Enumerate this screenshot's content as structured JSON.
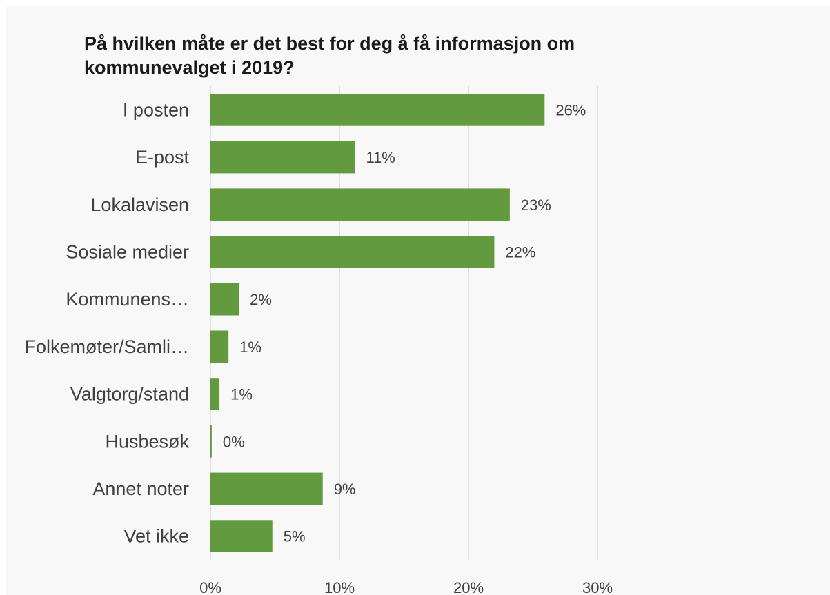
{
  "chart_data": {
    "type": "bar",
    "orientation": "horizontal",
    "title": "På hvilken måte er det best for deg å få informasjon om kommunevalget i 2019?",
    "categories": [
      "I posten",
      "E-post",
      "Lokalavisen",
      "Sosiale medier",
      "Kommunens…",
      "Folkemøter/Samli…",
      "Valgtorg/stand",
      "Husbesøk",
      "Annet noter",
      "Vet ikke"
    ],
    "values": [
      0.26,
      0.11,
      0.23,
      0.22,
      0.02,
      0.01,
      0.01,
      0.0,
      0.09,
      0.05
    ],
    "value_labels": [
      "26%",
      "11%",
      "23%",
      "22%",
      "2%",
      "1%",
      "1%",
      "0%",
      "9%",
      "5%"
    ],
    "bar_values_estimated": [
      0.259,
      0.112,
      0.232,
      0.22,
      0.022,
      0.014,
      0.007,
      0.001,
      0.087,
      0.048
    ],
    "xlim": [
      0,
      0.3
    ],
    "xticks": [
      0,
      0.1,
      0.2,
      0.3
    ],
    "xtick_labels": [
      "0%",
      "10%",
      "20%",
      "30%"
    ],
    "xlabel": "",
    "ylabel": "",
    "grid": true,
    "legend": "none",
    "bar_color": "#629b3f",
    "grid_color": "#d9d9d9",
    "background_color": "#f8f8f8"
  }
}
